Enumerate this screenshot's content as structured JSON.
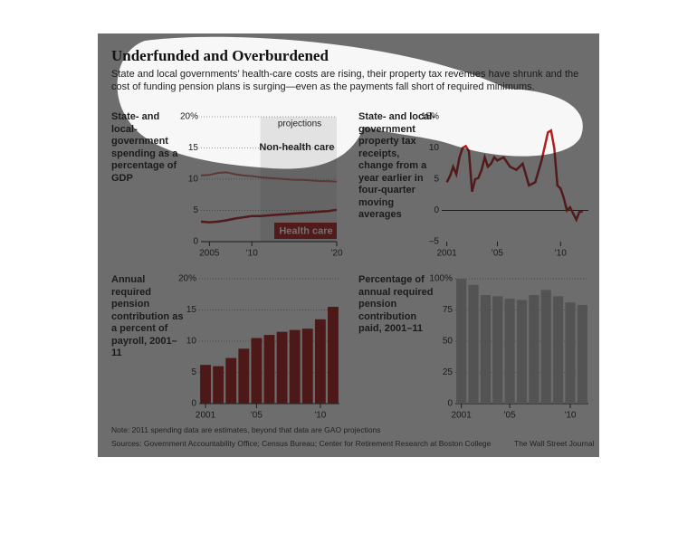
{
  "title": "Underfunded and Overburdened",
  "subtitle": "State and local governments’ health-care costs are rising, their property tax revenues have shrunk and the cost of funding pension plans is surging—even as the payments fall short of required minimums.",
  "chart_data": [
    {
      "type": "line",
      "label": "State- and local-government spending as a percentage of GDP",
      "annotation": "projections",
      "projection_start": 2011,
      "x": [
        2004,
        2005,
        2006,
        2007,
        2008,
        2009,
        2010,
        2011,
        2012,
        2013,
        2014,
        2015,
        2016,
        2017,
        2018,
        2019,
        2020
      ],
      "series": [
        {
          "name": "Non-health care",
          "color": "#c87070",
          "values": [
            10.6,
            10.7,
            11.0,
            11.1,
            10.8,
            10.6,
            10.5,
            10.3,
            10.2,
            10.1,
            10.0,
            9.9,
            9.9,
            9.8,
            9.7,
            9.7,
            9.6
          ]
        },
        {
          "name": "Health care",
          "color": "#b01e1e",
          "values": [
            3.2,
            3.1,
            3.2,
            3.4,
            3.7,
            3.9,
            4.1,
            4.1,
            4.2,
            4.3,
            4.4,
            4.5,
            4.6,
            4.7,
            4.8,
            4.9,
            5.1
          ]
        }
      ],
      "xlim": [
        2004,
        2020
      ],
      "xticks": [
        2005,
        {
          "value": 2010,
          "label": "'10"
        },
        {
          "value": 2020,
          "label": "'20"
        }
      ],
      "ylim": [
        0,
        20
      ],
      "yticks": [
        0,
        5,
        10,
        15,
        {
          "value": 20,
          "label": "20%"
        }
      ],
      "grid": true
    },
    {
      "type": "line",
      "label": "State- and local-government property tax receipts, change from a year earlier in four-quarter moving averages",
      "color": "#b01e1e",
      "x": [
        2001,
        2001.25,
        2001.5,
        2001.75,
        2002,
        2002.25,
        2002.5,
        2002.75,
        2003,
        2003.25,
        2003.5,
        2003.75,
        2004,
        2004.25,
        2004.5,
        2004.75,
        2005,
        2005.5,
        2006,
        2006.5,
        2007,
        2007.5,
        2008,
        2008.5,
        2009,
        2009.25,
        2009.5,
        2009.75,
        2010,
        2010.25,
        2010.5,
        2010.75,
        2011,
        2011.25,
        2011.5,
        2011.75
      ],
      "values": [
        4.5,
        5.5,
        7,
        5.8,
        8.5,
        10,
        10.3,
        9.5,
        3,
        5,
        5.2,
        6.5,
        8.5,
        7,
        7.5,
        8.5,
        8,
        8.5,
        7,
        6.5,
        7.5,
        4,
        4.5,
        8,
        12.5,
        12.8,
        10,
        4,
        3.5,
        2,
        0,
        0.5,
        -0.5,
        -1.5,
        -0.2,
        -0.2
      ],
      "xlim": [
        2000.6,
        2012.2
      ],
      "xticks": [
        2001,
        {
          "value": 2005,
          "label": "'05"
        },
        {
          "value": 2010,
          "label": "'10"
        }
      ],
      "ylim": [
        -5,
        15
      ],
      "yticks": [
        {
          "value": -5,
          "label": "–5"
        },
        0,
        5,
        10,
        {
          "value": 15,
          "label": "15%"
        }
      ],
      "grid": false
    },
    {
      "type": "bar",
      "label": "Annual required pension contribution as a percent of payroll, 2001–11",
      "color": "#a01818",
      "categories": [
        "2001",
        null,
        null,
        null,
        "'05",
        null,
        null,
        null,
        null,
        "'10",
        null
      ],
      "values": [
        6.2,
        6,
        7.3,
        8.8,
        10.5,
        11,
        11.5,
        11.8,
        12,
        13.5,
        15.5
      ],
      "ylim": [
        0,
        20
      ],
      "yticks": [
        0,
        5,
        10,
        15,
        {
          "value": 20,
          "label": "20%"
        }
      ],
      "grid": true
    },
    {
      "type": "bar",
      "label": "Percentage of annual required pension contribution paid, 2001–11",
      "color": "#b4b4b4",
      "categories": [
        "2001",
        null,
        null,
        null,
        "'05",
        null,
        null,
        null,
        null,
        "'10",
        null
      ],
      "values": [
        100,
        95,
        87,
        86,
        84,
        83,
        87,
        91,
        86,
        81,
        79
      ],
      "ylim": [
        0,
        100
      ],
      "yticks": [
        0,
        25,
        50,
        75,
        {
          "value": 100,
          "label": "100%"
        }
      ],
      "grid": true
    }
  ],
  "note": "Note: 2011 spending data are estimates, beyond that data are GAO projections",
  "sources": "Sources: Government Accountability Office; Census Bureau; Center for Retirement Research at Boston College",
  "credit": "The Wall Street Journal"
}
